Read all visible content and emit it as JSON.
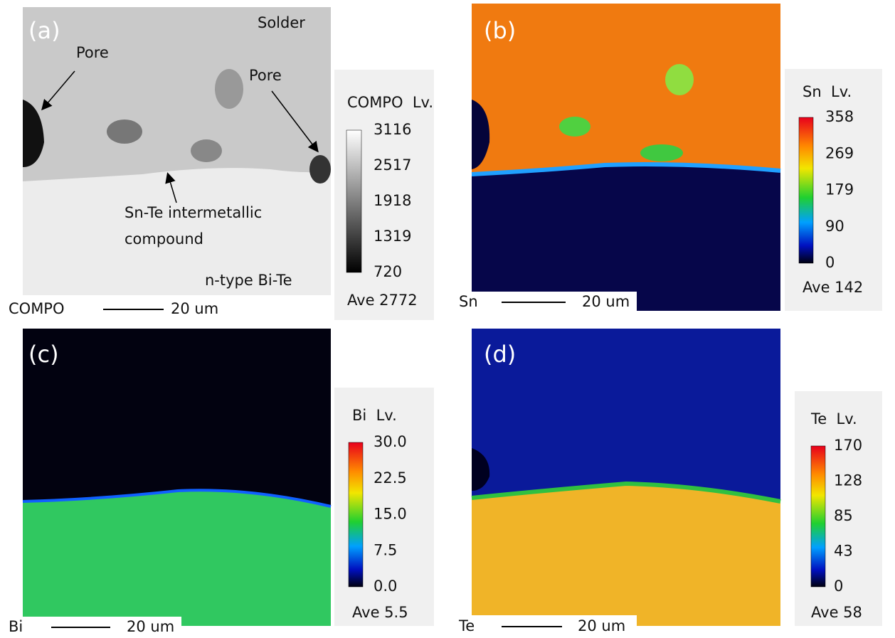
{
  "panels": [
    {
      "label": "(a)",
      "map_label": "COMPO",
      "scale": "20 um",
      "legend_title": "COMPO  Lv.",
      "ticks": [
        "3116",
        "2517",
        "1918",
        "1319",
        "720"
      ],
      "average": "Ave 2772"
    },
    {
      "label": "(b)",
      "map_label": "Sn",
      "scale": "20 um",
      "legend_title": "Sn  Lv.",
      "ticks": [
        "358",
        "269",
        "179",
        "90",
        "0"
      ],
      "average": "Ave 142"
    },
    {
      "label": "(c)",
      "map_label": "Bi",
      "scale": "20 um",
      "legend_title": "Bi  Lv.",
      "ticks": [
        "30.0",
        "22.5",
        "15.0",
        "7.5",
        "0.0"
      ],
      "average": "Ave 5.5"
    },
    {
      "label": "(d)",
      "map_label": "Te",
      "scale": "20 um",
      "legend_title": "Te  Lv.",
      "ticks": [
        "170",
        "128",
        "85",
        "43",
        "0"
      ],
      "average": "Ave 58"
    }
  ],
  "annotations": {
    "solder": "Solder",
    "pore_left": "Pore",
    "pore_right": "Pore",
    "imc_line1": "Sn-Te intermetallic",
    "imc_line2": "compound",
    "bite": "n-type Bi-Te"
  }
}
